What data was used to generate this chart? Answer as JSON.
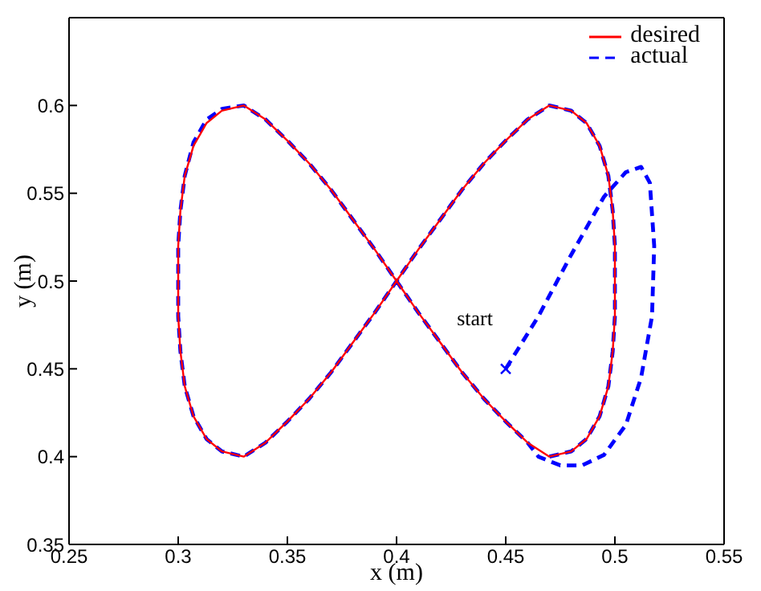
{
  "chart_data": {
    "type": "line",
    "xlabel": "x (m)",
    "ylabel": "y (m)",
    "xlim": [
      0.25,
      0.55
    ],
    "xticks": [
      0.25,
      0.3,
      0.35,
      0.4,
      0.45,
      0.5,
      0.55
    ],
    "ylim": [
      0.35,
      0.65
    ],
    "yticks": [
      0.35,
      0.4,
      0.45,
      0.5,
      0.55,
      0.6
    ],
    "grid": false,
    "legend": "top right",
    "annotations": [
      {
        "text": "start",
        "x": 0.45,
        "y": 0.45
      }
    ],
    "series": [
      {
        "name": "actual",
        "color": "#0000ff",
        "line_style": "dashed",
        "marker": "none",
        "x": [
          0.45,
          0.465,
          0.48,
          0.495,
          0.505,
          0.512,
          0.516,
          0.518,
          0.517,
          0.512,
          0.505,
          0.495,
          0.485,
          0.475,
          0.465,
          0.46,
          0.45,
          0.44,
          0.43,
          0.42,
          0.41,
          0.4,
          0.39,
          0.38,
          0.37,
          0.36,
          0.35,
          0.34,
          0.33,
          0.32,
          0.313,
          0.307,
          0.303,
          0.301,
          0.3,
          0.3,
          0.301,
          0.303,
          0.307,
          0.313,
          0.32,
          0.33,
          0.34,
          0.35,
          0.36,
          0.37,
          0.38,
          0.39,
          0.4,
          0.41,
          0.42,
          0.43,
          0.44,
          0.45,
          0.46,
          0.47,
          0.48,
          0.487,
          0.493,
          0.497,
          0.499,
          0.5,
          0.5,
          0.499,
          0.497,
          0.493,
          0.487,
          0.48,
          0.47
        ],
        "values": [
          0.45,
          0.48,
          0.515,
          0.548,
          0.562,
          0.565,
          0.556,
          0.52,
          0.48,
          0.445,
          0.418,
          0.401,
          0.395,
          0.395,
          0.4,
          0.408,
          0.42,
          0.433,
          0.448,
          0.465,
          0.482,
          0.5,
          0.518,
          0.535,
          0.552,
          0.567,
          0.58,
          0.592,
          0.6,
          0.598,
          0.592,
          0.579,
          0.56,
          0.54,
          0.52,
          0.48,
          0.46,
          0.44,
          0.423,
          0.41,
          0.403,
          0.4,
          0.408,
          0.42,
          0.433,
          0.448,
          0.465,
          0.482,
          0.5,
          0.518,
          0.535,
          0.552,
          0.567,
          0.58,
          0.592,
          0.6,
          0.597,
          0.59,
          0.577,
          0.56,
          0.54,
          0.52,
          0.48,
          0.46,
          0.44,
          0.423,
          0.41,
          0.403,
          0.4
        ]
      },
      {
        "name": "desired",
        "color": "#ff0000",
        "line_style": "solid",
        "marker": "none",
        "x": [
          0.4,
          0.41,
          0.42,
          0.43,
          0.44,
          0.45,
          0.46,
          0.47,
          0.48,
          0.487,
          0.493,
          0.497,
          0.499,
          0.5,
          0.5,
          0.499,
          0.497,
          0.493,
          0.487,
          0.48,
          0.47,
          0.46,
          0.45,
          0.44,
          0.43,
          0.42,
          0.41,
          0.4,
          0.39,
          0.38,
          0.37,
          0.36,
          0.35,
          0.34,
          0.33,
          0.32,
          0.313,
          0.307,
          0.303,
          0.301,
          0.3,
          0.3,
          0.301,
          0.303,
          0.307,
          0.313,
          0.32,
          0.33,
          0.34,
          0.35,
          0.36,
          0.37,
          0.38,
          0.39,
          0.4,
          0.41
        ],
        "values": [
          0.5,
          0.518,
          0.535,
          0.552,
          0.567,
          0.58,
          0.592,
          0.6,
          0.597,
          0.59,
          0.577,
          0.56,
          0.54,
          0.52,
          0.48,
          0.46,
          0.44,
          0.423,
          0.41,
          0.403,
          0.4,
          0.408,
          0.42,
          0.433,
          0.448,
          0.465,
          0.482,
          0.5,
          0.518,
          0.535,
          0.552,
          0.567,
          0.58,
          0.592,
          0.6,
          0.597,
          0.59,
          0.577,
          0.56,
          0.54,
          0.52,
          0.48,
          0.46,
          0.44,
          0.423,
          0.41,
          0.403,
          0.4,
          0.408,
          0.42,
          0.433,
          0.448,
          0.465,
          0.482,
          0.5,
          0.518
        ]
      },
      {
        "type": "scatter",
        "color": "#0000ff",
        "marker": "cross",
        "x": [
          0.45
        ],
        "values": [
          0.45
        ]
      }
    ]
  }
}
